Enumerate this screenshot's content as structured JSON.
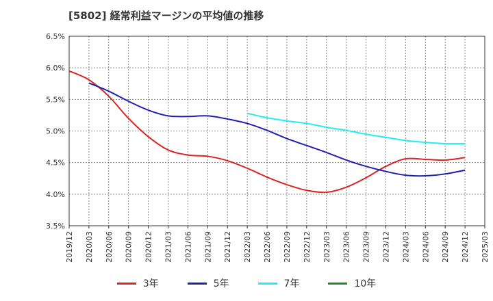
{
  "chart_data": {
    "type": "line",
    "title": "[5802]  経常利益マージンの平均値の推移",
    "xlabel": "",
    "ylabel": "",
    "categories": [
      "2019/12",
      "2020/03",
      "2020/06",
      "2020/09",
      "2020/12",
      "2021/03",
      "2021/06",
      "2021/09",
      "2021/12",
      "2022/03",
      "2022/06",
      "2022/09",
      "2022/12",
      "2023/03",
      "2023/06",
      "2023/09",
      "2023/12",
      "2024/03",
      "2024/06",
      "2024/09",
      "2024/12",
      "2025/03"
    ],
    "y_ticks": [
      "3.5%",
      "4.0%",
      "4.5%",
      "5.0%",
      "5.5%",
      "6.0%",
      "6.5%"
    ],
    "ylim": [
      3.5,
      6.5
    ],
    "grid": true,
    "legend_position": "bottom",
    "series": [
      {
        "name": "3年",
        "color": "#dd2222",
        "values": [
          5.95,
          5.81,
          5.55,
          5.2,
          4.91,
          4.7,
          4.62,
          4.6,
          4.53,
          4.41,
          4.27,
          4.15,
          4.06,
          4.03,
          4.11,
          4.26,
          4.44,
          4.56,
          4.55,
          4.54,
          4.58,
          null
        ]
      },
      {
        "name": "5年",
        "color": "#1f1fb4",
        "values": [
          null,
          5.76,
          5.63,
          5.47,
          5.33,
          5.24,
          5.23,
          5.24,
          5.19,
          5.12,
          5.01,
          4.88,
          4.77,
          4.66,
          4.54,
          4.44,
          4.36,
          4.3,
          4.29,
          4.32,
          4.38,
          null
        ]
      },
      {
        "name": "7年",
        "color": "#22eeee",
        "values": [
          null,
          null,
          null,
          null,
          null,
          null,
          null,
          null,
          null,
          5.28,
          5.21,
          5.16,
          5.12,
          5.06,
          5.01,
          4.95,
          4.9,
          4.85,
          4.82,
          4.8,
          4.8,
          null
        ]
      },
      {
        "name": "10年",
        "color": "#228b22",
        "values": [
          null,
          null,
          null,
          null,
          null,
          null,
          null,
          null,
          null,
          null,
          null,
          null,
          null,
          null,
          null,
          null,
          null,
          null,
          null,
          null,
          null,
          null
        ]
      }
    ]
  }
}
